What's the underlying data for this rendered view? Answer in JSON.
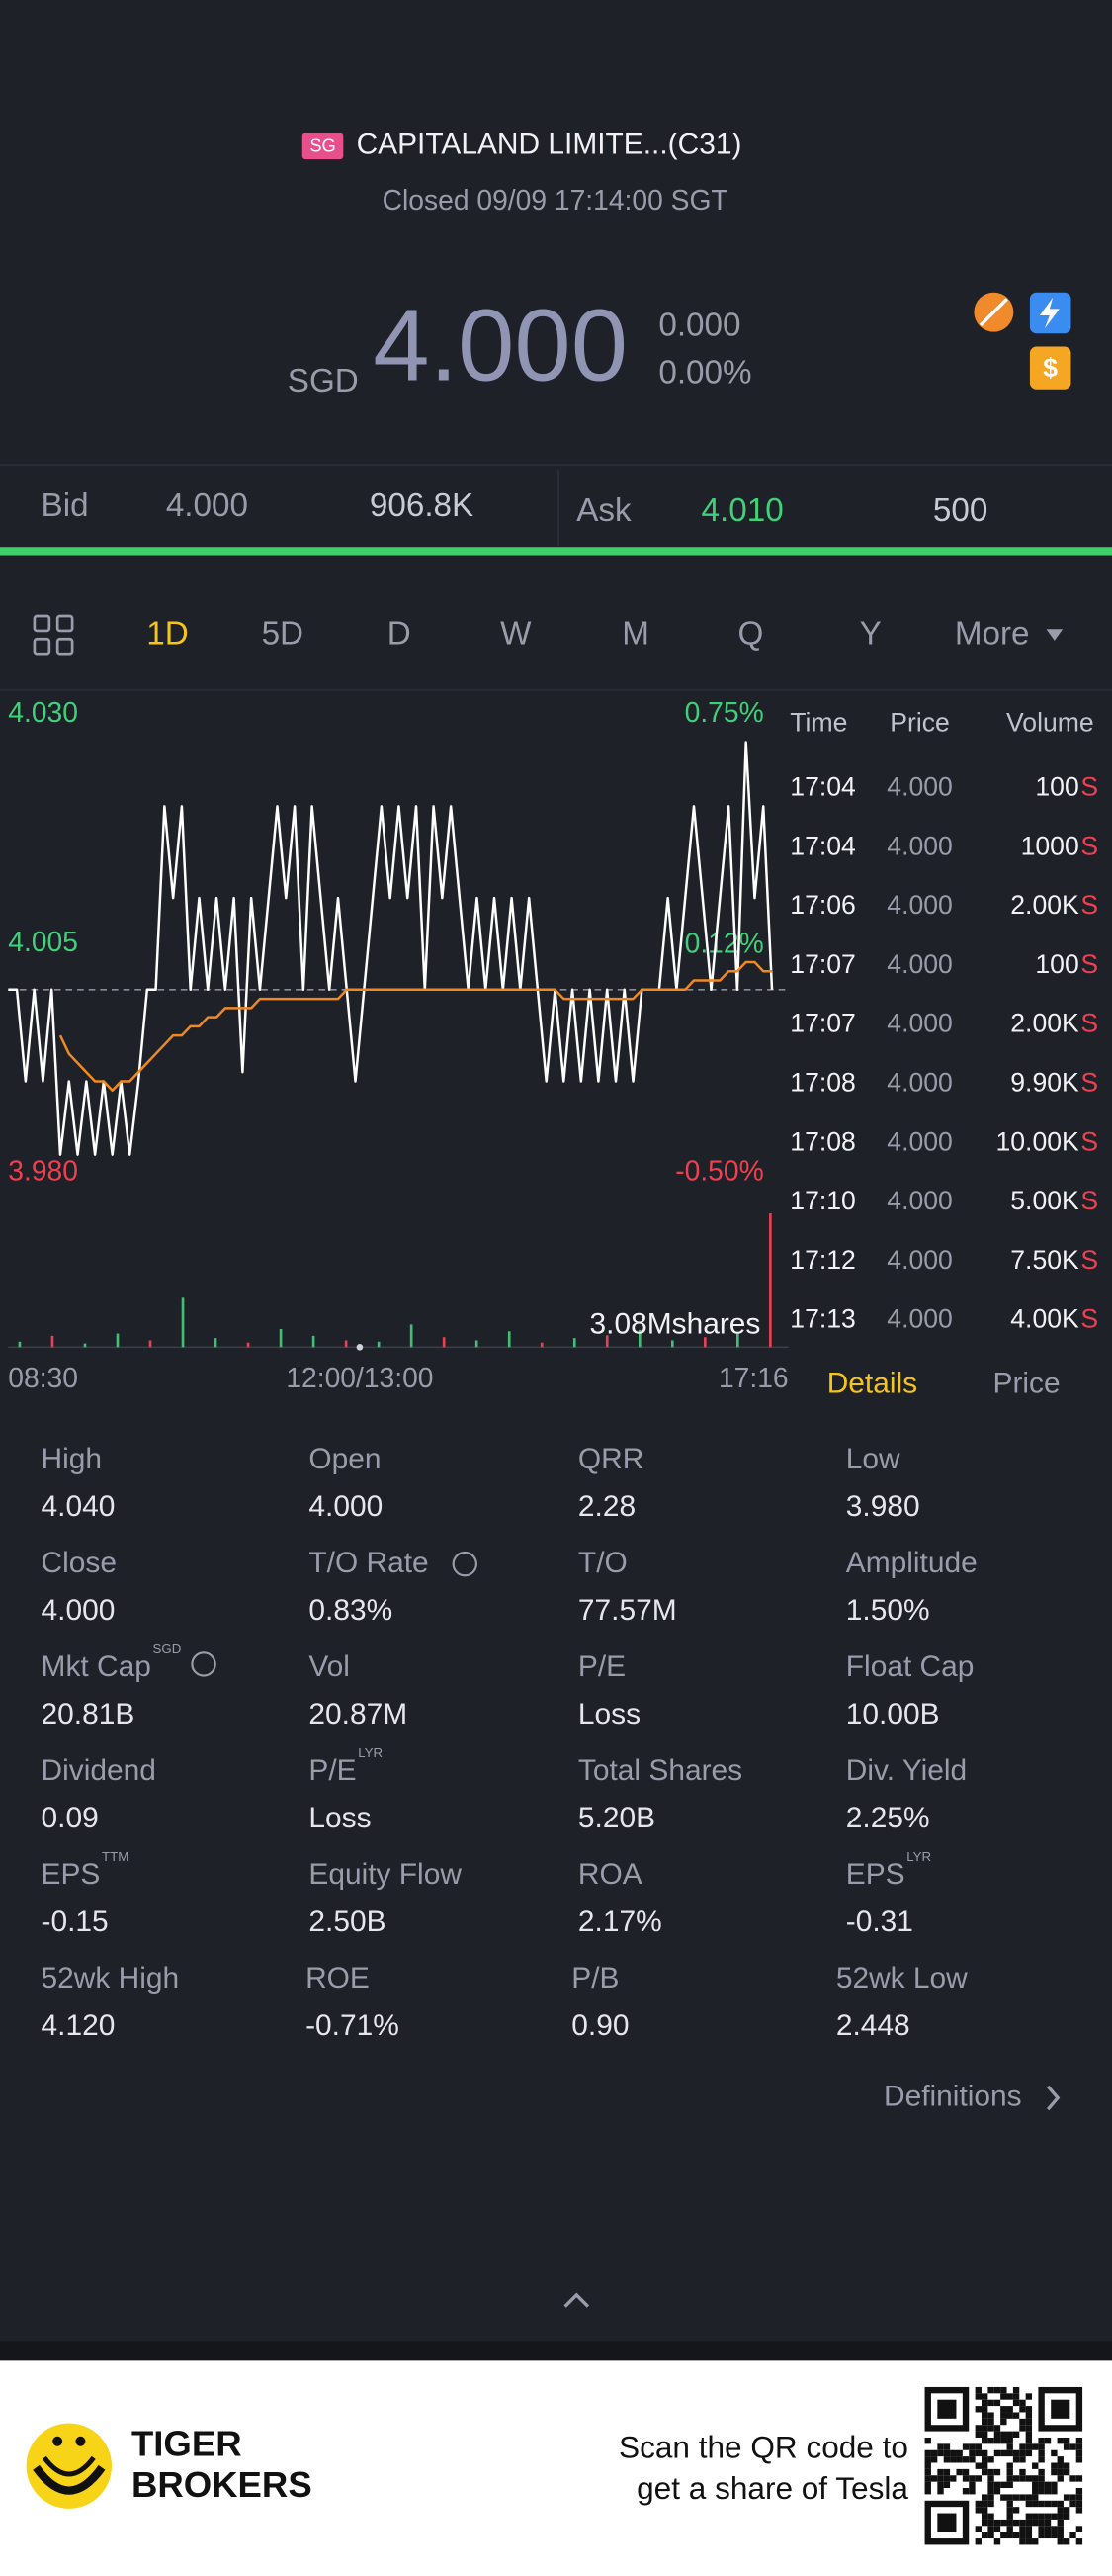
{
  "header": {
    "badge": "SG",
    "name": "CAPITALAND LIMITE...(C31)",
    "status": "Closed 09/09 17:14:00 SGT",
    "currency": "SGD",
    "price": "4.000",
    "change": "0.000",
    "change_pct": "0.00%"
  },
  "quote": {
    "bid_label": "Bid",
    "bid_price": "4.000",
    "bid_size": "906.8K",
    "ask_label": "Ask",
    "ask_price": "4.010",
    "ask_size": "500"
  },
  "tabs": [
    "1D",
    "5D",
    "D",
    "W",
    "M",
    "Q",
    "Y",
    "More"
  ],
  "active_tab": "1D",
  "chart_data": {
    "type": "line",
    "ylim": [
      3.98,
      4.03
    ],
    "yticks": [
      {
        "value": 4.03,
        "label": "4.030"
      },
      {
        "value": 4.005,
        "label": "4.005"
      },
      {
        "value": 3.98,
        "label": "3.980"
      }
    ],
    "y2lim": [
      -0.5,
      0.75
    ],
    "y2ticks": [
      {
        "value": 0.75,
        "label": "0.75%"
      },
      {
        "value": 0.12,
        "label": "0.12%"
      },
      {
        "value": -0.5,
        "label": "-0.50%"
      }
    ],
    "xtick_labels": [
      "08:30",
      "12:00/13:00",
      "17:16"
    ],
    "reference_line": 4.0,
    "series": [
      {
        "color": "#ffffff",
        "values": [
          4.0,
          4.0,
          3.99,
          4.0,
          3.99,
          4.0,
          3.982,
          3.99,
          3.982,
          3.99,
          3.982,
          3.99,
          3.982,
          3.99,
          3.982,
          3.99,
          4.0,
          4.0,
          4.02,
          4.01,
          4.02,
          4.0,
          4.01,
          4.0,
          4.01,
          4.0,
          4.01,
          3.991,
          4.01,
          4.0,
          4.01,
          4.02,
          4.01,
          4.02,
          4.0,
          4.02,
          4.01,
          4.0,
          4.01,
          4.0,
          3.99,
          4.0,
          4.01,
          4.02,
          4.01,
          4.02,
          4.01,
          4.02,
          4.0,
          4.02,
          4.01,
          4.02,
          4.01,
          4.0,
          4.01,
          4.0,
          4.01,
          4.0,
          4.01,
          4.0,
          4.01,
          4.0,
          3.99,
          4.0,
          3.99,
          4.0,
          3.99,
          4.0,
          3.99,
          4.0,
          3.99,
          4.0,
          3.99,
          4.0,
          4.0,
          4.0,
          4.01,
          4.0,
          4.01,
          4.02,
          4.01,
          4.0,
          4.01,
          4.02,
          4.0,
          4.027,
          4.01,
          4.02,
          4.0
        ]
      },
      {
        "color": "#f0891f",
        "values": [
          null,
          null,
          null,
          null,
          null,
          null,
          3.995,
          3.993,
          3.992,
          3.991,
          3.99,
          3.99,
          3.989,
          3.99,
          3.99,
          3.991,
          3.992,
          3.993,
          3.994,
          3.995,
          3.995,
          3.996,
          3.996,
          3.997,
          3.997,
          3.998,
          3.998,
          3.998,
          3.998,
          3.999,
          3.999,
          3.999,
          3.999,
          3.999,
          3.999,
          3.999,
          3.999,
          3.999,
          3.999,
          4.0,
          4.0,
          4.0,
          4.0,
          4.0,
          4.0,
          4.0,
          4.0,
          4.0,
          4.0,
          4.0,
          4.0,
          4.0,
          4.0,
          4.0,
          4.0,
          4.0,
          4.0,
          4.0,
          4.0,
          4.0,
          4.0,
          4.0,
          4.0,
          4.0,
          3.999,
          3.999,
          3.999,
          3.999,
          3.999,
          3.999,
          3.999,
          3.999,
          3.999,
          4.0,
          4.0,
          4.0,
          4.0,
          4.0,
          4.0,
          4.001,
          4.001,
          4.001,
          4.001,
          4.002,
          4.002,
          4.003,
          4.003,
          4.002,
          4.002
        ]
      }
    ],
    "volume": {
      "label": "3.08Mshares",
      "ylim": [
        0,
        3080000
      ],
      "values": [
        120000,
        250000,
        80000,
        300000,
        150000,
        1090000,
        200000,
        100000,
        400000,
        250000,
        150000,
        120000,
        500000,
        220000,
        150000,
        350000,
        100000,
        200000,
        260000,
        380000,
        150000,
        220000,
        300000,
        2950000
      ],
      "colors": [
        "#3fbf6f",
        "#e8404f",
        "#3fbf6f",
        "#3fbf6f",
        "#e8404f",
        "#3fbf6f",
        "#3fbf6f",
        "#e8404f",
        "#3fbf6f",
        "#3fbf6f",
        "#e8404f",
        "#3fbf6f",
        "#3fbf6f",
        "#e8404f",
        "#3fbf6f",
        "#3fbf6f",
        "#e8404f",
        "#3fbf6f",
        "#e8404f",
        "#3fbf6f",
        "#3fbf6f",
        "#e8404f",
        "#3fbf6f",
        "#e8404f"
      ]
    }
  },
  "trades": {
    "columns": [
      "Time",
      "Price",
      "Volume"
    ],
    "rows": [
      {
        "time": "17:04",
        "price": "4.000",
        "volume": "100",
        "side": "S"
      },
      {
        "time": "17:04",
        "price": "4.000",
        "volume": "1000",
        "side": "S"
      },
      {
        "time": "17:06",
        "price": "4.000",
        "volume": "2.00K",
        "side": "S"
      },
      {
        "time": "17:07",
        "price": "4.000",
        "volume": "100",
        "side": "S"
      },
      {
        "time": "17:07",
        "price": "4.000",
        "volume": "2.00K",
        "side": "S"
      },
      {
        "time": "17:08",
        "price": "4.000",
        "volume": "9.90K",
        "side": "S"
      },
      {
        "time": "17:08",
        "price": "4.000",
        "volume": "10.00K",
        "side": "S"
      },
      {
        "time": "17:10",
        "price": "4.000",
        "volume": "5.00K",
        "side": "S"
      },
      {
        "time": "17:12",
        "price": "4.000",
        "volume": "7.50K",
        "side": "S"
      },
      {
        "time": "17:13",
        "price": "4.000",
        "volume": "4.00K",
        "side": "S"
      }
    ]
  },
  "panel_tabs": [
    "Details",
    "Price"
  ],
  "details": [
    {
      "label": "High",
      "value": "4.040"
    },
    {
      "label": "Open",
      "value": "4.000"
    },
    {
      "label": "QRR",
      "value": "2.28"
    },
    {
      "label": "Low",
      "value": "3.980"
    },
    {
      "label": "Close",
      "value": "4.000"
    },
    {
      "label": "T/O Rate",
      "value": "0.83%"
    },
    {
      "label": "T/O",
      "value": "77.57M"
    },
    {
      "label": "Amplitude",
      "value": "1.50%"
    },
    {
      "label": "Mkt Cap",
      "sup": "SGD",
      "value": "20.81B"
    },
    {
      "label": "Vol",
      "value": "20.87M"
    },
    {
      "label": "P/E",
      "value": "Loss"
    },
    {
      "label": "Float Cap",
      "value": "10.00B"
    },
    {
      "label": "Dividend",
      "value": "0.09"
    },
    {
      "label": "P/E",
      "sup": "LYR",
      "value": "Loss"
    },
    {
      "label": "Total Shares",
      "value": "5.20B"
    },
    {
      "label": "Div. Yield",
      "value": "2.25%"
    },
    {
      "label": "EPS",
      "sup": "TTM",
      "value": "-0.15"
    },
    {
      "label": "Equity Flow",
      "value": "2.50B"
    },
    {
      "label": "ROA",
      "value": "2.17%"
    },
    {
      "label": "EPS",
      "sup": "LYR",
      "value": "-0.31"
    },
    {
      "label": "52wk High",
      "value": "4.120"
    },
    {
      "label": "ROE",
      "value": "-0.71%"
    },
    {
      "label": "P/B",
      "value": "0.90"
    },
    {
      "label": "52wk Low",
      "value": "2.448"
    }
  ],
  "definitions": "Definitions",
  "footer": {
    "brand": [
      "TIGER",
      "BROKERS"
    ],
    "promo": [
      "Scan the QR code to",
      "get a share of Tesla"
    ]
  }
}
